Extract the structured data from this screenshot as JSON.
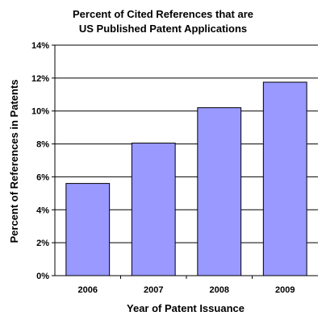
{
  "chart_data": {
    "type": "bar",
    "title_lines": [
      "Percent of Cited References that are",
      "US Published Patent Applications"
    ],
    "xlabel": "Year of Patent Issuance",
    "ylabel": "Percent of References in Patents",
    "categories": [
      "2006",
      "2007",
      "2008",
      "2009"
    ],
    "values": [
      5.6,
      8.05,
      10.2,
      11.75
    ],
    "ylim": [
      0,
      14
    ],
    "yticks": [
      "0%",
      "2%",
      "4%",
      "6%",
      "8%",
      "10%",
      "12%",
      "14%"
    ],
    "grid": true,
    "bar_color": "#9999ff",
    "bar_border_color": "#000000"
  }
}
